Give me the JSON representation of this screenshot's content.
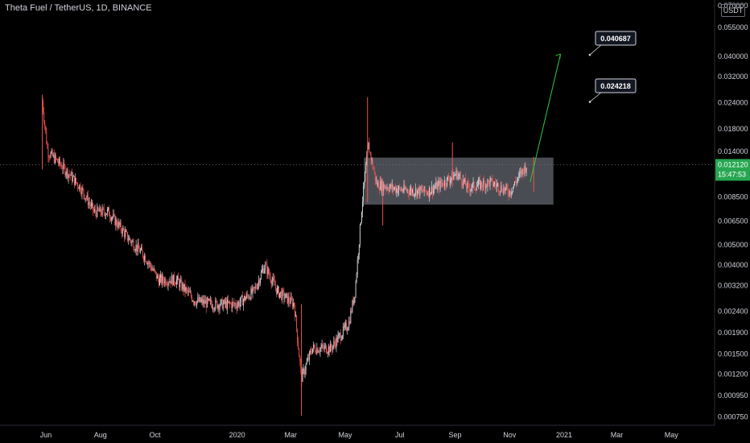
{
  "header": {
    "title": "Theta Fuel / TetherUS, 1D, BINANCE",
    "currency_button": "USDT"
  },
  "price_scale": {
    "current_price": "0.012120",
    "countdown": "15:47:53",
    "current_price_color": "#26a650"
  },
  "annotations": {
    "callout_high": "0.040687",
    "callout_mid": "0.024218",
    "box_color": "#787b86",
    "arrow_color": "#2bcc3a"
  },
  "chart_data": {
    "type": "candlestick",
    "symbol": "Theta Fuel / TetherUS",
    "interval": "1D",
    "exchange": "BINANCE",
    "scale": "log",
    "x_ticks": [
      "Jun",
      "Aug",
      "Oct",
      "2020",
      "Mar",
      "May",
      "Jul",
      "Sep",
      "Nov",
      "2021",
      "Mar",
      "May"
    ],
    "y_ticks": [
      "0.070000",
      "0.055000",
      "0.040000",
      "0.032000",
      "0.024000",
      "0.018000",
      "0.014000",
      "0.012120",
      "0.008500",
      "0.006500",
      "0.005000",
      "0.004000",
      "0.003200",
      "0.002400",
      "0.001900",
      "0.001500",
      "0.001200",
      "0.000950",
      "0.000750"
    ],
    "up_color": "#d1d4dc",
    "down_color": "#ef5350",
    "price_path": [
      {
        "date": "2019-05-28",
        "close": 0.0245
      },
      {
        "date": "2019-06-03",
        "close": 0.014
      },
      {
        "date": "2019-06-20",
        "close": 0.0118
      },
      {
        "date": "2019-07-10",
        "close": 0.0094
      },
      {
        "date": "2019-07-25",
        "close": 0.0072
      },
      {
        "date": "2019-08-10",
        "close": 0.0072
      },
      {
        "date": "2019-09-01",
        "close": 0.0054
      },
      {
        "date": "2019-09-20",
        "close": 0.0044
      },
      {
        "date": "2019-10-05",
        "close": 0.0034
      },
      {
        "date": "2019-10-25",
        "close": 0.0034
      },
      {
        "date": "2019-11-15",
        "close": 0.0027
      },
      {
        "date": "2019-12-05",
        "close": 0.0026
      },
      {
        "date": "2020-01-01",
        "close": 0.0026
      },
      {
        "date": "2020-01-20",
        "close": 0.003
      },
      {
        "date": "2020-02-01",
        "close": 0.004
      },
      {
        "date": "2020-02-15",
        "close": 0.003
      },
      {
        "date": "2020-03-05",
        "close": 0.0026
      },
      {
        "date": "2020-03-13",
        "close": 0.00115
      },
      {
        "date": "2020-03-25",
        "close": 0.0016
      },
      {
        "date": "2020-04-15",
        "close": 0.0016
      },
      {
        "date": "2020-05-05",
        "close": 0.0021
      },
      {
        "date": "2020-05-12",
        "close": 0.003
      },
      {
        "date": "2020-05-20",
        "close": 0.008
      },
      {
        "date": "2020-05-27",
        "close": 0.015
      },
      {
        "date": "2020-06-05",
        "close": 0.0098
      },
      {
        "date": "2020-07-01",
        "close": 0.0092
      },
      {
        "date": "2020-08-01",
        "close": 0.009
      },
      {
        "date": "2020-08-20",
        "close": 0.01
      },
      {
        "date": "2020-09-03",
        "close": 0.011
      },
      {
        "date": "2020-09-15",
        "close": 0.0094
      },
      {
        "date": "2020-10-10",
        "close": 0.01
      },
      {
        "date": "2020-11-01",
        "close": 0.009
      },
      {
        "date": "2020-11-20",
        "close": 0.0121
      }
    ],
    "range_box": {
      "from": "2020-05-22",
      "to": "2020-12-20",
      "top": 0.0131,
      "bottom": 0.0078
    },
    "projection": {
      "from_date": "2020-11-24",
      "from": 0.01,
      "to_date": "2020-12-28",
      "to": 0.040687
    },
    "price_line": 0.01212
  }
}
